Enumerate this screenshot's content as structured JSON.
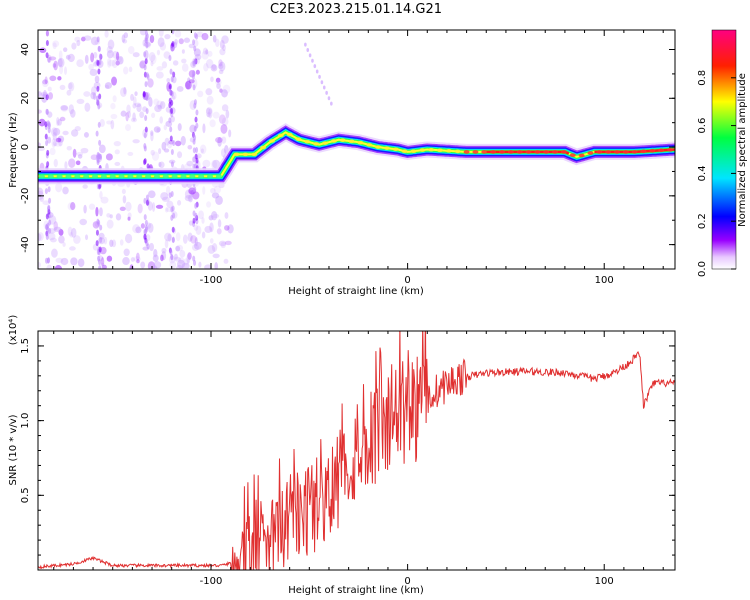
{
  "title": "C2E3.2023.215.01.14.G21",
  "colors": {
    "snr_line": "#e03030",
    "axis": "#000000"
  },
  "chart_data": [
    {
      "type": "heatmap",
      "name": "spectrogram",
      "xlabel": "Height of straight line (km)",
      "ylabel": "Frequency (Hz)",
      "xlim": [
        -188,
        136
      ],
      "ylim": [
        -50,
        48
      ],
      "xticks": [
        -100,
        0,
        100
      ],
      "xtick_labels": [
        "-100",
        "0",
        "100"
      ],
      "yticks": [
        -40,
        -20,
        0,
        20,
        40
      ],
      "ytick_labels": [
        "-40",
        "-20",
        "0",
        "20",
        "40"
      ],
      "colorbar": {
        "label": "Normalized spectral amplitude",
        "range": [
          0,
          1
        ],
        "ticks": [
          0.0,
          0.2,
          0.4,
          0.6,
          0.8
        ],
        "tick_labels": [
          "0.0",
          "0.2",
          "0.4",
          "0.6",
          "0.8"
        ],
        "colormap": "rainbow (white-violet-blue-cyan-green-yellow-red-magenta)"
      },
      "ridge": [
        [
          -188,
          -12
        ],
        [
          -150,
          -12
        ],
        [
          -120,
          -12
        ],
        [
          -95,
          -12
        ],
        [
          -88,
          -3
        ],
        [
          -78,
          -3
        ],
        [
          -70,
          2
        ],
        [
          -62,
          6
        ],
        [
          -55,
          3
        ],
        [
          -45,
          1
        ],
        [
          -35,
          3
        ],
        [
          -25,
          2
        ],
        [
          -15,
          0
        ],
        [
          -5,
          -1
        ],
        [
          0,
          -2
        ],
        [
          10,
          -1
        ],
        [
          30,
          -2
        ],
        [
          60,
          -2
        ],
        [
          80,
          -2
        ],
        [
          86,
          -4
        ],
        [
          95,
          -2
        ],
        [
          115,
          -2
        ],
        [
          136,
          -1
        ]
      ],
      "grid": false
    },
    {
      "type": "line",
      "name": "snr",
      "xlabel": "Height of straight line (km)",
      "ylabel": "SNR (10 * v/v)",
      "yscale_label": "(x10⁴)",
      "xlim": [
        -188,
        136
      ],
      "ylim": [
        0,
        1.6
      ],
      "xticks": [
        -100,
        0,
        100
      ],
      "xtick_labels": [
        "-100",
        "0",
        "100"
      ],
      "yticks": [
        0.5,
        1.0,
        1.5
      ],
      "ytick_labels": [
        "0.5",
        "1.0",
        "1.5"
      ],
      "anchors": [
        [
          -188,
          0.02
        ],
        [
          -170,
          0.04
        ],
        [
          -160,
          0.08
        ],
        [
          -150,
          0.03
        ],
        [
          -120,
          0.03
        ],
        [
          -95,
          0.03
        ],
        [
          -85,
          0.06
        ],
        [
          -75,
          0.15
        ],
        [
          -65,
          0.25
        ],
        [
          -55,
          0.35
        ],
        [
          -45,
          0.45
        ],
        [
          -35,
          0.6
        ],
        [
          -25,
          0.8
        ],
        [
          -15,
          0.95
        ],
        [
          -5,
          1.05
        ],
        [
          5,
          1.1
        ],
        [
          15,
          1.2
        ],
        [
          25,
          1.28
        ],
        [
          40,
          1.32
        ],
        [
          60,
          1.33
        ],
        [
          80,
          1.32
        ],
        [
          95,
          1.28
        ],
        [
          105,
          1.32
        ],
        [
          112,
          1.38
        ],
        [
          118,
          1.45
        ],
        [
          120,
          1.1
        ],
        [
          125,
          1.25
        ],
        [
          136,
          1.25
        ]
      ],
      "grid": false
    }
  ]
}
